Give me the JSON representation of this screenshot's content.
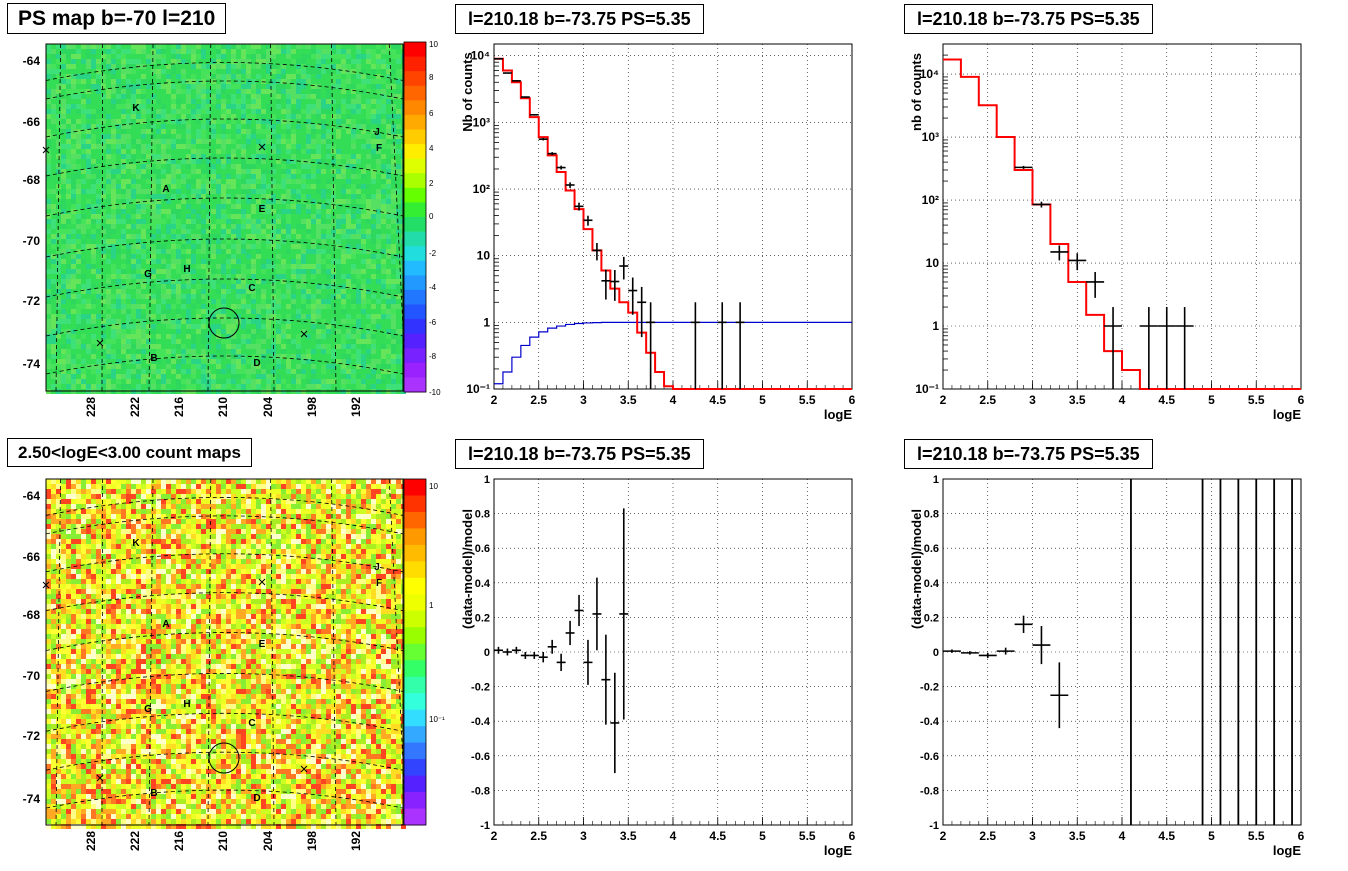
{
  "panels": {
    "tl_title": "PS map b=-70 l=210",
    "bl_title": "2.50<logE<3.00 count maps",
    "tm_title": "l=210.18 b=-73.75 PS=5.35",
    "tr_title": "l=210.18 b=-73.75 PS=5.35",
    "bm_title": "l=210.18 b=-73.75 PS=5.35",
    "br_title": "l=210.18 b=-73.75 PS=5.35"
  },
  "colors": {
    "data": "#000000",
    "model": "#ff0000",
    "exposure": "#0000cc",
    "map_green": "#33dd55"
  },
  "chart_data": [
    {
      "id": "ps_map",
      "type": "heatmap",
      "title": "PS map b=-70 l=210",
      "y_ticks": [
        "-64",
        "-66",
        "-68",
        "-70",
        "-72",
        "-74"
      ],
      "x_ticks": [
        "228",
        "222",
        "216",
        "210",
        "204",
        "198",
        "192"
      ],
      "colorbar_ticks": [
        "10",
        "8",
        "6",
        "4",
        "2",
        "0",
        "-2",
        "-4",
        "-6",
        "-8",
        "-10"
      ],
      "labels": [
        "K",
        "J",
        "F",
        "A",
        "E",
        "G",
        "H",
        "C",
        "B",
        "D"
      ]
    },
    {
      "id": "count_map",
      "type": "heatmap",
      "title": "2.50<logE<3.00 count maps",
      "y_ticks": [
        "-64",
        "-66",
        "-68",
        "-70",
        "-72",
        "-74"
      ],
      "x_ticks": [
        "228",
        "222",
        "216",
        "210",
        "204",
        "198",
        "192"
      ],
      "colorbar_ticks": [
        "10",
        "1",
        "10⁻¹"
      ],
      "labels": [
        "K",
        "J",
        "F",
        "A",
        "E",
        "G",
        "H",
        "C",
        "B",
        "D"
      ]
    },
    {
      "id": "spec1",
      "type": "line",
      "title": "l=210.18 b=-73.75 PS=5.35",
      "xlabel": "logE",
      "ylabel": "Nb of counts",
      "yscale": "log",
      "xlim": [
        2,
        6
      ],
      "ylim": [
        0.1,
        15000
      ],
      "x_ticks": [
        "2",
        "2.5",
        "3",
        "3.5",
        "4",
        "4.5",
        "5",
        "5.5",
        "6"
      ],
      "y_ticks": [
        "10⁻¹",
        "1",
        "10",
        "10²",
        "10³",
        "10⁴"
      ],
      "series": [
        {
          "kind": "model_step",
          "edges": [
            2,
            2.1,
            2.2,
            2.3,
            2.4,
            2.5,
            2.6,
            2.7,
            2.8,
            2.9,
            3.0,
            3.1,
            3.2,
            3.3,
            3.4,
            3.5,
            3.6,
            3.7,
            3.8,
            3.9,
            4.0,
            6.0
          ],
          "values": [
            9000,
            6000,
            4000,
            2300,
            1200,
            600,
            320,
            180,
            95,
            50,
            25,
            12,
            6,
            3.2,
            2,
            1.4,
            0.7,
            0.35,
            0.18,
            0.11,
            0.1
          ]
        },
        {
          "kind": "exposure_step",
          "edges": [
            2.0,
            2.1,
            2.2,
            2.3,
            2.4,
            2.5,
            2.6,
            2.7,
            2.8,
            2.9,
            3.0,
            3.1,
            3.2,
            3.3,
            6.0
          ],
          "values": [
            0.12,
            0.18,
            0.3,
            0.45,
            0.6,
            0.72,
            0.82,
            0.88,
            0.93,
            0.96,
            0.98,
            0.99,
            1.0,
            1.0
          ]
        },
        {
          "kind": "data_points",
          "x": [
            2.05,
            2.15,
            2.25,
            2.35,
            2.45,
            2.55,
            2.65,
            2.75,
            2.85,
            2.95,
            3.05,
            3.15,
            3.25,
            3.35,
            3.45,
            3.55,
            3.65,
            3.75,
            4.25,
            4.55,
            4.75
          ],
          "y": [
            9000,
            5500,
            4200,
            2400,
            1300,
            560,
            340,
            210,
            115,
            55,
            34,
            12,
            4.2,
            4.1,
            7,
            3,
            2,
            1,
            1,
            1,
            1
          ],
          "err_lo": [
            95,
            75,
            65,
            50,
            35,
            24,
            18,
            14,
            11,
            7.5,
            5.8,
            3.5,
            2,
            2,
            2.6,
            1.7,
            1.4,
            0.9,
            0.9,
            0.9,
            0.9
          ],
          "err_hi": [
            95,
            75,
            65,
            50,
            35,
            24,
            18,
            14,
            11,
            7.5,
            5.8,
            3.5,
            2,
            2,
            2.6,
            1.7,
            1.4,
            1,
            1,
            1,
            1
          ]
        }
      ]
    },
    {
      "id": "spec2",
      "type": "line",
      "title": "l=210.18 b=-73.75 PS=5.35",
      "xlabel": "logE",
      "ylabel": "nb of counts",
      "yscale": "log",
      "xlim": [
        2,
        6
      ],
      "ylim": [
        0.1,
        30000
      ],
      "x_ticks": [
        "2",
        "2.5",
        "3",
        "3.5",
        "4",
        "4.5",
        "5",
        "5.5",
        "6"
      ],
      "y_ticks": [
        "10⁻¹",
        "1",
        "10",
        "10²",
        "10³",
        "10⁴"
      ],
      "series": [
        {
          "kind": "model_step",
          "edges": [
            2.0,
            2.2,
            2.4,
            2.6,
            2.8,
            3.0,
            3.2,
            3.4,
            3.6,
            3.8,
            4.0,
            4.2,
            6.0
          ],
          "values": [
            17000,
            9000,
            3200,
            1000,
            300,
            85,
            20,
            5,
            1.5,
            0.4,
            0.2,
            0.1
          ]
        },
        {
          "kind": "data_points",
          "x": [
            2.9,
            3.1,
            3.3,
            3.5,
            3.7,
            3.9,
            4.3,
            4.5,
            4.7
          ],
          "y": [
            330,
            85,
            15,
            11,
            5,
            1,
            1,
            1,
            1
          ],
          "xerr": [
            0.1,
            0.1,
            0.1,
            0.1,
            0.1,
            0.1,
            0.1,
            0.1,
            0.1
          ],
          "err_lo": [
            18,
            9,
            4,
            3.3,
            2.2,
            0.9,
            0.9,
            0.9,
            0.9
          ],
          "err_hi": [
            18,
            9,
            4,
            3.3,
            2.2,
            1,
            1,
            1,
            1
          ]
        }
      ]
    },
    {
      "id": "resid1",
      "type": "scatter",
      "title": "l=210.18 b=-73.75 PS=5.35",
      "xlabel": "logE",
      "ylabel": "(data-model)/model",
      "xlim": [
        2,
        6
      ],
      "ylim": [
        -1,
        1
      ],
      "x_ticks": [
        "2",
        "2.5",
        "3",
        "3.5",
        "4",
        "4.5",
        "5",
        "5.5",
        "6"
      ],
      "y_ticks": [
        "1",
        "0.8",
        "0.6",
        "0.4",
        "0.2",
        "0",
        "-0.2",
        "-0.4",
        "-0.6",
        "-0.8",
        "-1"
      ],
      "series": [
        {
          "kind": "data_points",
          "x": [
            2.05,
            2.15,
            2.25,
            2.35,
            2.45,
            2.55,
            2.65,
            2.75,
            2.85,
            2.95,
            3.05,
            3.15,
            3.25,
            3.35,
            3.45
          ],
          "y": [
            0.01,
            0.0,
            0.01,
            -0.02,
            -0.02,
            -0.03,
            0.03,
            -0.06,
            0.11,
            0.24,
            -0.06,
            0.22,
            -0.16,
            -0.41,
            0.22
          ],
          "err": [
            0.02,
            0.02,
            0.02,
            0.02,
            0.02,
            0.03,
            0.04,
            0.05,
            0.07,
            0.09,
            0.13,
            0.21,
            0.26,
            0.29,
            0.61
          ]
        }
      ]
    },
    {
      "id": "resid2",
      "type": "scatter",
      "title": "l=210.18 b=-73.75 PS=5.35",
      "xlabel": "logE",
      "ylabel": "(data-model)/model",
      "xlim": [
        2,
        6
      ],
      "ylim": [
        -1,
        1
      ],
      "x_ticks": [
        "2",
        "2.5",
        "3",
        "3.5",
        "4",
        "4.5",
        "5",
        "5.5",
        "6"
      ],
      "y_ticks": [
        "1",
        "0.8",
        "0.6",
        "0.4",
        "0.2",
        "0",
        "-0.2",
        "-0.4",
        "-0.6",
        "-0.8",
        "-1"
      ],
      "series": [
        {
          "kind": "data_points",
          "x": [
            2.1,
            2.3,
            2.5,
            2.7,
            2.9,
            3.1,
            3.3
          ],
          "y": [
            0.005,
            -0.005,
            -0.02,
            0.005,
            0.16,
            0.04,
            -0.25
          ],
          "xerr": [
            0.1,
            0.1,
            0.1,
            0.1,
            0.1,
            0.1,
            0.1
          ],
          "err": [
            0.01,
            0.01,
            0.015,
            0.02,
            0.05,
            0.11,
            0.19
          ]
        },
        {
          "kind": "vlines",
          "x": [
            4.1,
            4.9,
            5.1,
            5.3,
            5.5,
            5.7,
            5.9
          ]
        }
      ]
    }
  ]
}
